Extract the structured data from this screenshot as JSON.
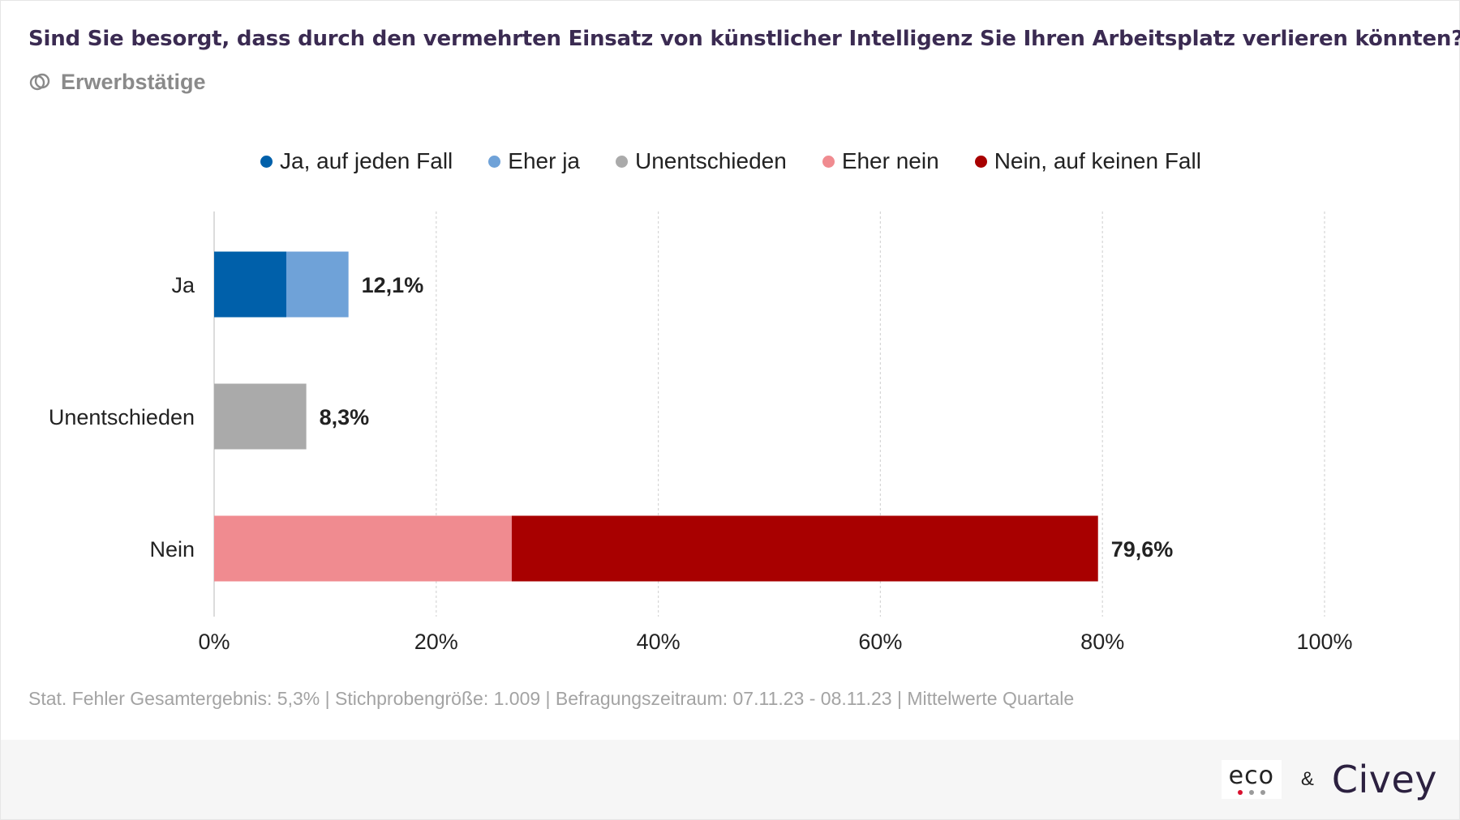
{
  "header": {
    "title": "Sind Sie besorgt, dass durch den vermehrten Einsatz von künstlicher Intelligenz Sie Ihren Arbeitsplatz verlieren könnten?",
    "subtitle": "Erwerbstätige",
    "subtitle_icon": "overlapping-circles-icon"
  },
  "chart_data": {
    "type": "bar",
    "orientation": "horizontal",
    "stacked": true,
    "categories": [
      "Ja",
      "Unentschieden",
      "Nein"
    ],
    "series": [
      {
        "name": "Ja, auf jeden Fall",
        "color": "#0060aa",
        "values": [
          6.5,
          0,
          0
        ]
      },
      {
        "name": "Eher ja",
        "color": "#6fa2d8",
        "values": [
          5.6,
          0,
          0
        ]
      },
      {
        "name": "Unentschieden",
        "color": "#aaaaaa",
        "values": [
          0,
          8.3,
          0
        ]
      },
      {
        "name": "Eher nein",
        "color": "#f08b90",
        "values": [
          0,
          0,
          26.8
        ]
      },
      {
        "name": "Nein, auf keinen Fall",
        "color": "#a80000",
        "values": [
          0,
          0,
          52.8
        ]
      }
    ],
    "totals": [
      "12,1%",
      "8,3%",
      "79,6%"
    ],
    "xlim": [
      0,
      100
    ],
    "xticks": [
      0,
      20,
      40,
      60,
      80,
      100
    ],
    "xtick_labels": [
      "0%",
      "20%",
      "40%",
      "60%",
      "80%",
      "100%"
    ],
    "grid": true,
    "legend_position": "top"
  },
  "footnote": "Stat. Fehler Gesamtergebnis: 5,3% | Stichprobengröße: 1.009 | Befragungszeitraum: 07.11.23 - 08.11.23 | Mittelwerte Quartale",
  "brand": {
    "eco": "eco",
    "ampersand": "&",
    "civey": "Civey",
    "eco_dot_colors": [
      "#d9102f",
      "#9a9a9a",
      "#9a9a9a"
    ]
  }
}
